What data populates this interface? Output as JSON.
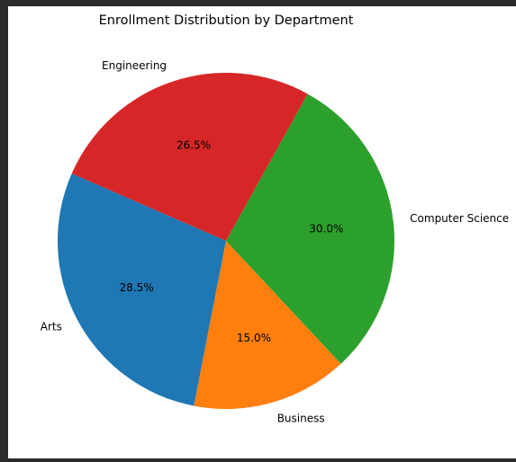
{
  "chart_data": {
    "type": "pie",
    "title": "Enrollment Distribution by Department",
    "slices": [
      {
        "label": "Computer Science",
        "value": 30.0,
        "pct_text": "30.0%",
        "color": "#2ca02c"
      },
      {
        "label": "Engineering",
        "value": 26.5,
        "pct_text": "26.5%",
        "color": "#d62728"
      },
      {
        "label": "Arts",
        "value": 28.5,
        "pct_text": "28.5%",
        "color": "#1f77b4"
      },
      {
        "label": "Business",
        "value": 15.0,
        "pct_text": "15.0%",
        "color": "#ff7f0e"
      }
    ],
    "direction": "counterclockwise",
    "legend": "none"
  }
}
